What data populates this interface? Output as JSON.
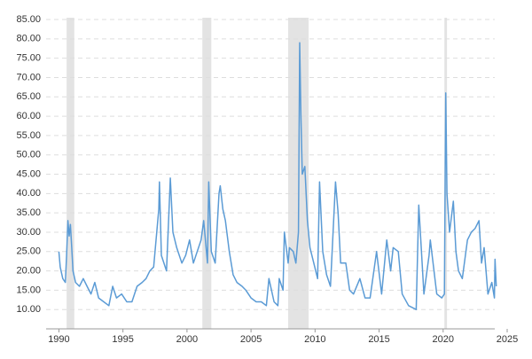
{
  "chart_data": {
    "type": "line",
    "x": [
      1990.0,
      1990.1,
      1990.3,
      1990.5,
      1990.6,
      1990.7,
      1990.8,
      1990.9,
      1991.0,
      1991.1,
      1991.3,
      1991.6,
      1991.9,
      1992.2,
      1992.5,
      1992.8,
      1993.1,
      1993.5,
      1993.9,
      1994.2,
      1994.5,
      1994.9,
      1995.3,
      1995.7,
      1996.1,
      1996.5,
      1996.8,
      1997.1,
      1997.4,
      1997.8,
      1997.85,
      1998.0,
      1998.4,
      1998.7,
      1998.9,
      1999.2,
      1999.6,
      1999.9,
      2000.2,
      2000.5,
      2000.8,
      2001.1,
      2001.3,
      2001.6,
      2001.7,
      2001.9,
      2002.2,
      2002.5,
      2002.6,
      2002.8,
      2003.0,
      2003.3,
      2003.6,
      2003.9,
      2004.3,
      2004.6,
      2005.0,
      2005.4,
      2005.8,
      2006.2,
      2006.4,
      2006.8,
      2007.1,
      2007.2,
      2007.5,
      2007.6,
      2007.9,
      2008.0,
      2008.3,
      2008.5,
      2008.7,
      2008.8,
      2008.9,
      2009.0,
      2009.2,
      2009.4,
      2009.6,
      2009.9,
      2010.2,
      2010.35,
      2010.6,
      2010.9,
      2011.2,
      2011.6,
      2011.8,
      2012.0,
      2012.4,
      2012.7,
      2013.0,
      2013.5,
      2013.9,
      2014.3,
      2014.8,
      2015.2,
      2015.6,
      2015.9,
      2016.1,
      2016.5,
      2016.8,
      2017.3,
      2017.9,
      2018.1,
      2018.5,
      2018.9,
      2019.0,
      2019.5,
      2019.9,
      2020.1,
      2020.2,
      2020.3,
      2020.5,
      2020.8,
      2021.0,
      2021.2,
      2021.5,
      2021.9,
      2022.2,
      2022.5,
      2022.8,
      2023.0,
      2023.2,
      2023.5,
      2023.8,
      2024.0,
      2024.05,
      2024.15
    ],
    "series": [
      {
        "color": "#5b9bd5",
        "values": [
          25,
          21,
          18,
          17,
          24,
          33,
          29,
          32,
          26,
          20,
          17,
          16,
          18,
          16,
          14,
          17,
          13,
          12,
          11,
          16,
          13,
          14,
          12,
          12,
          16,
          17,
          18,
          20,
          21,
          36,
          43,
          24,
          20,
          44,
          30,
          26,
          22,
          24,
          28,
          22,
          25,
          28,
          33,
          22,
          43,
          25,
          22,
          40,
          42,
          36,
          33,
          25,
          19,
          17,
          16,
          15,
          13,
          12,
          12,
          11,
          18,
          12,
          11,
          18,
          15,
          30,
          22,
          26,
          25,
          22,
          30,
          79,
          60,
          45,
          47,
          33,
          26,
          22,
          18,
          43,
          25,
          19,
          16,
          43,
          35,
          22,
          22,
          15,
          14,
          18,
          13,
          13,
          25,
          14,
          28,
          20,
          26,
          25,
          14,
          11,
          10,
          37,
          14,
          24,
          28,
          14,
          13,
          14,
          66,
          40,
          30,
          38,
          25,
          20,
          18,
          28,
          30,
          31,
          33,
          22,
          26,
          14,
          17,
          13,
          23,
          16
        ]
      }
    ],
    "shaded_periods": [
      [
        1990.6,
        1991.2
      ],
      [
        2001.2,
        2001.9
      ],
      [
        2007.9,
        2009.5
      ],
      [
        2020.1,
        2020.3
      ]
    ],
    "xlim": [
      1989,
      2025
    ],
    "xticks": [
      1990,
      1995,
      2000,
      2005,
      2010,
      2015,
      2020,
      2025
    ],
    "ylim": [
      5,
      85
    ],
    "yticks": [
      {
        "value": 10,
        "label": "10.00"
      },
      {
        "value": 15,
        "label": "15.00"
      },
      {
        "value": 20,
        "label": "20.00"
      },
      {
        "value": 25,
        "label": "25.00"
      },
      {
        "value": 30,
        "label": "30.00"
      },
      {
        "value": 35,
        "label": "35.00"
      },
      {
        "value": 40,
        "label": "40.00"
      },
      {
        "value": 45,
        "label": "45.00"
      },
      {
        "value": 50,
        "label": "50.00"
      },
      {
        "value": 55,
        "label": "55.00"
      },
      {
        "value": 60,
        "label": "60.00"
      },
      {
        "value": 65,
        "label": "65.00"
      },
      {
        "value": 70,
        "label": "70.00"
      },
      {
        "value": 75,
        "label": "75.00"
      },
      {
        "value": 80,
        "label": "80.00"
      },
      {
        "value": 85,
        "label": "85.00"
      }
    ],
    "grid": true
  }
}
